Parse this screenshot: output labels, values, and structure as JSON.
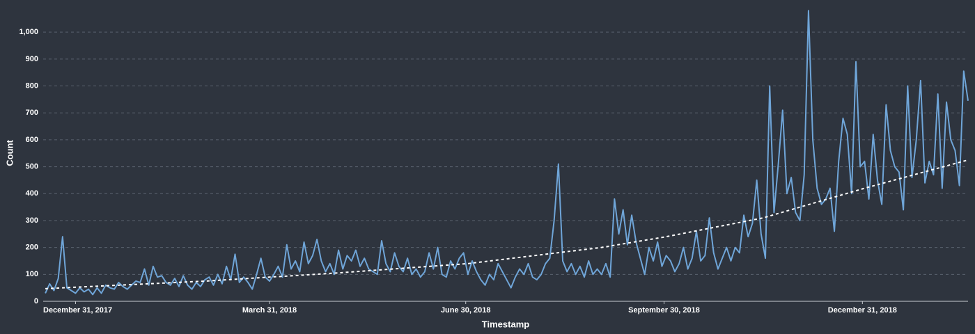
{
  "chart_data": {
    "type": "line",
    "x_label": "Timestamp",
    "y_label": "Count",
    "xlim": [
      "2017-12-16",
      "2019-02-18"
    ],
    "xticks": [
      {
        "value": "2017-12-31",
        "label": "December 31, 2017"
      },
      {
        "value": "2018-03-31",
        "label": "March 31, 2018"
      },
      {
        "value": "2018-06-30",
        "label": "June 30, 2018"
      },
      {
        "value": "2018-09-30",
        "label": "September 30, 2018"
      },
      {
        "value": "2018-12-31",
        "label": "December 31, 2018"
      }
    ],
    "ylim": [
      0,
      1100
    ],
    "yticks": [
      0,
      100,
      200,
      300,
      400,
      500,
      600,
      700,
      800,
      900,
      {
        "value": 1000,
        "label": "1,000"
      }
    ],
    "grid": true,
    "x": [
      "2017-12-17",
      "2017-12-19",
      "2017-12-21",
      "2017-12-23",
      "2017-12-25",
      "2017-12-27",
      "2017-12-29",
      "2017-12-31",
      "2018-01-02",
      "2018-01-04",
      "2018-01-06",
      "2018-01-08",
      "2018-01-10",
      "2018-01-12",
      "2018-01-14",
      "2018-01-16",
      "2018-01-18",
      "2018-01-20",
      "2018-01-22",
      "2018-01-24",
      "2018-01-26",
      "2018-01-28",
      "2018-01-30",
      "2018-02-01",
      "2018-02-03",
      "2018-02-05",
      "2018-02-07",
      "2018-02-09",
      "2018-02-11",
      "2018-02-13",
      "2018-02-15",
      "2018-02-17",
      "2018-02-19",
      "2018-02-21",
      "2018-02-23",
      "2018-02-25",
      "2018-02-27",
      "2018-03-01",
      "2018-03-03",
      "2018-03-05",
      "2018-03-07",
      "2018-03-09",
      "2018-03-11",
      "2018-03-13",
      "2018-03-15",
      "2018-03-17",
      "2018-03-19",
      "2018-03-21",
      "2018-03-23",
      "2018-03-25",
      "2018-03-27",
      "2018-03-29",
      "2018-03-31",
      "2018-04-02",
      "2018-04-04",
      "2018-04-06",
      "2018-04-08",
      "2018-04-10",
      "2018-04-12",
      "2018-04-14",
      "2018-04-16",
      "2018-04-18",
      "2018-04-20",
      "2018-04-22",
      "2018-04-24",
      "2018-04-26",
      "2018-04-28",
      "2018-04-30",
      "2018-05-02",
      "2018-05-04",
      "2018-05-06",
      "2018-05-08",
      "2018-05-10",
      "2018-05-12",
      "2018-05-14",
      "2018-05-16",
      "2018-05-18",
      "2018-05-20",
      "2018-05-22",
      "2018-05-24",
      "2018-05-26",
      "2018-05-28",
      "2018-05-30",
      "2018-06-01",
      "2018-06-03",
      "2018-06-05",
      "2018-06-07",
      "2018-06-09",
      "2018-06-11",
      "2018-06-13",
      "2018-06-15",
      "2018-06-17",
      "2018-06-19",
      "2018-06-21",
      "2018-06-23",
      "2018-06-25",
      "2018-06-27",
      "2018-06-29",
      "2018-07-01",
      "2018-07-03",
      "2018-07-05",
      "2018-07-07",
      "2018-07-09",
      "2018-07-11",
      "2018-07-13",
      "2018-07-15",
      "2018-07-17",
      "2018-07-19",
      "2018-07-21",
      "2018-07-23",
      "2018-07-25",
      "2018-07-27",
      "2018-07-29",
      "2018-07-31",
      "2018-08-02",
      "2018-08-04",
      "2018-08-06",
      "2018-08-08",
      "2018-08-10",
      "2018-08-12",
      "2018-08-14",
      "2018-08-16",
      "2018-08-18",
      "2018-08-20",
      "2018-08-22",
      "2018-08-24",
      "2018-08-26",
      "2018-08-28",
      "2018-08-30",
      "2018-09-01",
      "2018-09-03",
      "2018-09-05",
      "2018-09-07",
      "2018-09-09",
      "2018-09-11",
      "2018-09-13",
      "2018-09-15",
      "2018-09-17",
      "2018-09-19",
      "2018-09-21",
      "2018-09-23",
      "2018-09-25",
      "2018-09-27",
      "2018-09-29",
      "2018-10-01",
      "2018-10-03",
      "2018-10-05",
      "2018-10-07",
      "2018-10-09",
      "2018-10-11",
      "2018-10-13",
      "2018-10-15",
      "2018-10-17",
      "2018-10-19",
      "2018-10-21",
      "2018-10-23",
      "2018-10-25",
      "2018-10-27",
      "2018-10-29",
      "2018-10-31",
      "2018-11-02",
      "2018-11-04",
      "2018-11-06",
      "2018-11-08",
      "2018-11-10",
      "2018-11-12",
      "2018-11-14",
      "2018-11-16",
      "2018-11-18",
      "2018-11-20",
      "2018-11-22",
      "2018-11-24",
      "2018-11-26",
      "2018-11-28",
      "2018-11-30",
      "2018-12-02",
      "2018-12-04",
      "2018-12-06",
      "2018-12-08",
      "2018-12-10",
      "2018-12-12",
      "2018-12-14",
      "2018-12-16",
      "2018-12-18",
      "2018-12-20",
      "2018-12-22",
      "2018-12-24",
      "2018-12-26",
      "2018-12-28",
      "2018-12-30",
      "2019-01-01",
      "2019-01-03",
      "2019-01-05",
      "2019-01-07",
      "2019-01-09",
      "2019-01-11",
      "2019-01-13",
      "2019-01-15",
      "2019-01-17",
      "2019-01-19",
      "2019-01-21",
      "2019-01-23",
      "2019-01-25",
      "2019-01-27",
      "2019-01-29",
      "2019-01-31",
      "2019-02-02",
      "2019-02-04",
      "2019-02-06",
      "2019-02-08",
      "2019-02-10",
      "2019-02-12",
      "2019-02-14",
      "2019-02-16",
      "2019-02-18"
    ],
    "series": [
      {
        "name": "Count",
        "color": "#6fa5d8",
        "values": [
          30,
          65,
          40,
          85,
          240,
          50,
          40,
          30,
          50,
          35,
          45,
          25,
          50,
          30,
          60,
          50,
          45,
          70,
          55,
          45,
          60,
          75,
          70,
          120,
          60,
          130,
          90,
          95,
          70,
          60,
          85,
          55,
          95,
          60,
          45,
          70,
          55,
          80,
          90,
          60,
          100,
          65,
          130,
          80,
          175,
          70,
          90,
          70,
          45,
          100,
          160,
          90,
          75,
          100,
          130,
          90,
          210,
          120,
          150,
          110,
          220,
          140,
          170,
          230,
          150,
          110,
          140,
          100,
          190,
          120,
          170,
          150,
          190,
          130,
          160,
          120,
          110,
          100,
          225,
          140,
          110,
          180,
          130,
          110,
          160,
          100,
          120,
          90,
          110,
          180,
          120,
          200,
          100,
          90,
          150,
          120,
          160,
          180,
          100,
          150,
          110,
          80,
          60,
          100,
          80,
          140,
          110,
          80,
          50,
          90,
          120,
          100,
          140,
          90,
          80,
          100,
          140,
          160,
          300,
          510,
          150,
          110,
          140,
          100,
          130,
          90,
          150,
          100,
          120,
          100,
          140,
          90,
          380,
          250,
          340,
          210,
          320,
          220,
          160,
          100,
          200,
          150,
          220,
          130,
          170,
          150,
          110,
          140,
          200,
          120,
          160,
          260,
          150,
          170,
          310,
          180,
          120,
          160,
          200,
          150,
          200,
          180,
          320,
          240,
          290,
          450,
          250,
          160,
          800,
          330,
          510,
          710,
          400,
          460,
          330,
          300,
          470,
          1080,
          600,
          420,
          360,
          380,
          420,
          260,
          520,
          680,
          620,
          400,
          890,
          500,
          520,
          380,
          620,
          450,
          360,
          730,
          560,
          500,
          480,
          340,
          800,
          460,
          600,
          820,
          440,
          520,
          470,
          770,
          420,
          740,
          600,
          560,
          430,
          855,
          745
        ]
      }
    ],
    "trend": {
      "color": "#ffffff",
      "x": [
        "2017-12-17",
        "2018-03-01",
        "2018-05-01",
        "2018-07-01",
        "2018-09-01",
        "2018-10-01",
        "2018-11-15",
        "2019-01-01",
        "2019-02-18"
      ],
      "values": [
        47,
        75,
        105,
        140,
        200,
        240,
        310,
        420,
        525
      ]
    }
  }
}
